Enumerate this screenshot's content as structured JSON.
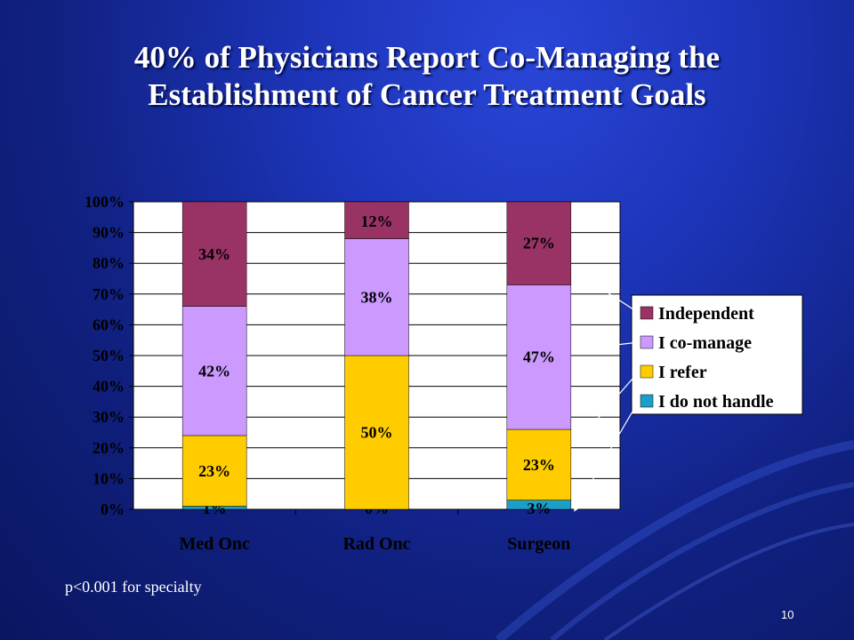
{
  "slide": {
    "title": "40% of Physicians Report Co-Managing the Establishment of Cancer Treatment Goals",
    "footnote": "p<0.001 for specialty",
    "page_number": "10"
  },
  "chart_data": {
    "type": "bar",
    "stacked": true,
    "categories": [
      "Med Onc",
      "Rad Onc",
      "Surgeon"
    ],
    "series": [
      {
        "name": "I do not handle",
        "values": [
          1,
          0,
          3
        ],
        "color": "#1aa0c8",
        "labels": [
          "1%",
          "0%",
          "3%"
        ]
      },
      {
        "name": "I refer",
        "values": [
          23,
          50,
          23
        ],
        "color": "#ffcc00",
        "labels": [
          "23%",
          "50%",
          "23%"
        ]
      },
      {
        "name": "I co-manage",
        "values": [
          42,
          38,
          47
        ],
        "color": "#cc99ff",
        "labels": [
          "42%",
          "38%",
          "47%"
        ]
      },
      {
        "name": "Independent",
        "values": [
          34,
          12,
          27
        ],
        "color": "#993366",
        "labels": [
          "34%",
          "12%",
          "27%"
        ]
      }
    ],
    "legend_order": [
      "Independent",
      "I co-manage",
      "I refer",
      "I do not handle"
    ],
    "ylim": [
      0,
      100
    ],
    "yticks": [
      "0%",
      "10%",
      "20%",
      "30%",
      "40%",
      "50%",
      "60%",
      "70%",
      "80%",
      "90%",
      "100%"
    ],
    "grid": "horizontal",
    "legend_position": "right",
    "plot_background": "#ffffff"
  }
}
